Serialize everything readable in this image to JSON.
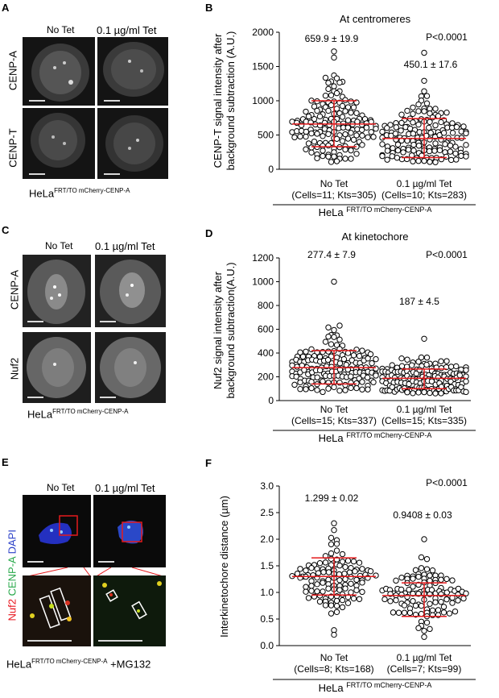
{
  "panels": {
    "A": {
      "letter": "A",
      "col_labels": [
        "No Tet",
        "0.1 µg/ml Tet"
      ],
      "row_labels": [
        "CENP-A",
        "CENP-T"
      ],
      "cell_line": "HeLa",
      "cell_line_sup": "FRT/TO mCherry-CENP-A"
    },
    "C": {
      "letter": "C",
      "col_labels": [
        "No Tet",
        "0.1 µg/ml Tet"
      ],
      "row_labels": [
        "CENP-A",
        "Nuf2"
      ],
      "cell_line": "HeLa",
      "cell_line_sup": "FRT/TO mCherry-CENP-A"
    },
    "E": {
      "letter": "E",
      "col_labels": [
        "No Tet",
        "0.1 µg/ml Tet"
      ],
      "row_label_parts": [
        "Nuf2",
        "CENP-A",
        "DAPI"
      ],
      "row_label_colors": [
        "#e8141c",
        "#27a84a",
        "#2b40c8"
      ],
      "cell_line": "HeLa",
      "cell_line_sup": "FRT/TO mCherry-CENP-A",
      "cell_line_suffix": "+MG132"
    }
  },
  "chart_data": [
    {
      "letter": "B",
      "type": "scatter",
      "title": "At centromeres",
      "ylabel_lines": [
        "CENP-T signal intensity after",
        "background subtraction (A.U.)"
      ],
      "ylim": [
        0,
        2000
      ],
      "yticks": [
        0,
        500,
        1000,
        1500,
        2000
      ],
      "categories": [
        "No Tet",
        "0.1 µg/ml Tet"
      ],
      "category_sub": [
        "(Cells=11; Kts=305)",
        "(Cells=10; Kts=283)"
      ],
      "group_stats": [
        "659.9 ± 19.9",
        "450.1 ± 17.6"
      ],
      "means": [
        659.9,
        450.1
      ],
      "sd_low": [
        330,
        170
      ],
      "sd_high": [
        1000,
        740
      ],
      "max_points": [
        1720,
        1700
      ],
      "pvalue": "P<0.0001",
      "cell_line": "HeLa",
      "cell_line_sup": "FRT/TO mCherry-CENP-A"
    },
    {
      "letter": "D",
      "type": "scatter",
      "title": "At kinetochore",
      "ylabel_lines": [
        "Nuf2 signal intensity after",
        "background subtraction(A.U.)"
      ],
      "ylim": [
        0,
        1200
      ],
      "yticks": [
        0,
        200,
        400,
        600,
        800,
        1000,
        1200
      ],
      "categories": [
        "No Tet",
        "0.1 µg/ml Tet"
      ],
      "category_sub": [
        "(Cells=15; Kts=337)",
        "(Cells=15; Kts=335)"
      ],
      "group_stats": [
        "277.4 ± 7.9",
        "187 ± 4.5"
      ],
      "means": [
        277.4,
        187
      ],
      "sd_low": [
        140,
        100
      ],
      "sd_high": [
        420,
        265
      ],
      "max_points": [
        1000,
        520
      ],
      "pvalue": "P<0.0001",
      "cell_line": "HeLa",
      "cell_line_sup": "FRT/TO mCherry-CENP-A"
    },
    {
      "letter": "F",
      "type": "scatter",
      "title": "",
      "ylabel_lines": [
        "Interkinetochore distance (µm)"
      ],
      "ylim": [
        0,
        3.0
      ],
      "yticks": [
        0,
        0.5,
        1.0,
        1.5,
        2.0,
        2.5,
        3.0
      ],
      "categories": [
        "No Tet",
        "0.1 µg/ml Tet"
      ],
      "category_sub": [
        "(Cells=8; Kts=168)",
        "(Cells=7; Kts=99)"
      ],
      "group_stats": [
        "1.299 ± 0.02",
        "0.9408 ± 0.03"
      ],
      "means": [
        1.299,
        0.9408
      ],
      "sd_low": [
        0.95,
        0.55
      ],
      "sd_high": [
        1.65,
        1.18
      ],
      "max_points": [
        2.3,
        2.0
      ],
      "pvalue": "P<0.0001",
      "cell_line": "HeLa",
      "cell_line_sup": "FRT/TO mCherry-CENP-A"
    }
  ],
  "colors": {
    "sd_bar": "#e41a1c",
    "marker": "#000000"
  }
}
